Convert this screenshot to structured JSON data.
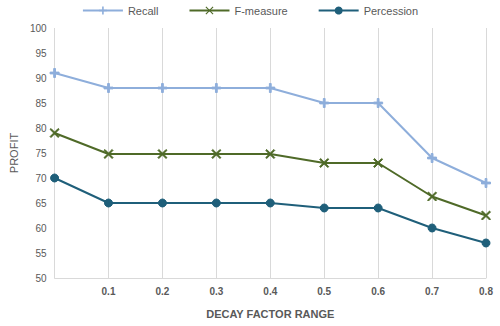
{
  "chart_data": {
    "type": "line",
    "x_label": "DECAY FACTOR RANGE",
    "y_label": "PROFIT",
    "categories": [
      null,
      "0.1",
      "0.2",
      "0.3",
      "0.4",
      "0.5",
      "0.6",
      "0.7",
      "0.8"
    ],
    "series": [
      {
        "name": "Recall",
        "color": "#8eaedb",
        "marker": "plus",
        "values": [
          91,
          88,
          88,
          88,
          88,
          85,
          85,
          74,
          69
        ]
      },
      {
        "name": "F-measure",
        "color": "#4f6a28",
        "marker": "x",
        "values": [
          79,
          74.8,
          74.8,
          74.8,
          74.8,
          73,
          73,
          66.3,
          62.5
        ]
      },
      {
        "name": "Percession",
        "color": "#1f5f7a",
        "marker": "circle",
        "values": [
          70,
          65,
          65,
          65,
          65,
          64,
          64,
          60,
          57
        ]
      }
    ],
    "ylim": [
      50,
      100
    ],
    "yticks": [
      50,
      55,
      60,
      65,
      70,
      75,
      80,
      85,
      90,
      95,
      100
    ],
    "grid": true,
    "legend": "top"
  }
}
